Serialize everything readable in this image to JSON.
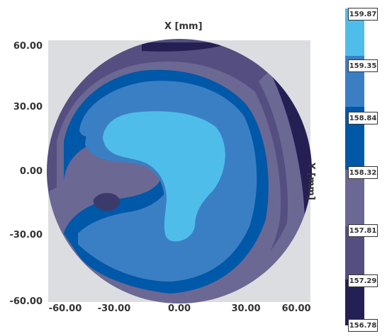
{
  "chart_data": {
    "type": "heatmap",
    "title": "X [mm]",
    "ylabel": "Y [mm]",
    "x_ticks": [
      "-60.00",
      "-30.00",
      "0.00",
      "30.00",
      "60.00"
    ],
    "y_ticks": [
      "60.00",
      "30.00",
      "0.00",
      "-30.00",
      "-60.00"
    ],
    "xlim": [
      -60,
      60
    ],
    "ylim": [
      -60,
      60
    ],
    "grid": false,
    "shape": "circular wafer contour map",
    "colorbar": {
      "levels": [
        "159.87",
        "159.35",
        "158.84",
        "158.32",
        "157.81",
        "157.29",
        "156.78"
      ],
      "colors": [
        "#4fbde9",
        "#3a7fc4",
        "#0058a8",
        "#6b6894",
        "#544f80",
        "#3c3a6a",
        "#242054"
      ],
      "placement": "right"
    }
  }
}
